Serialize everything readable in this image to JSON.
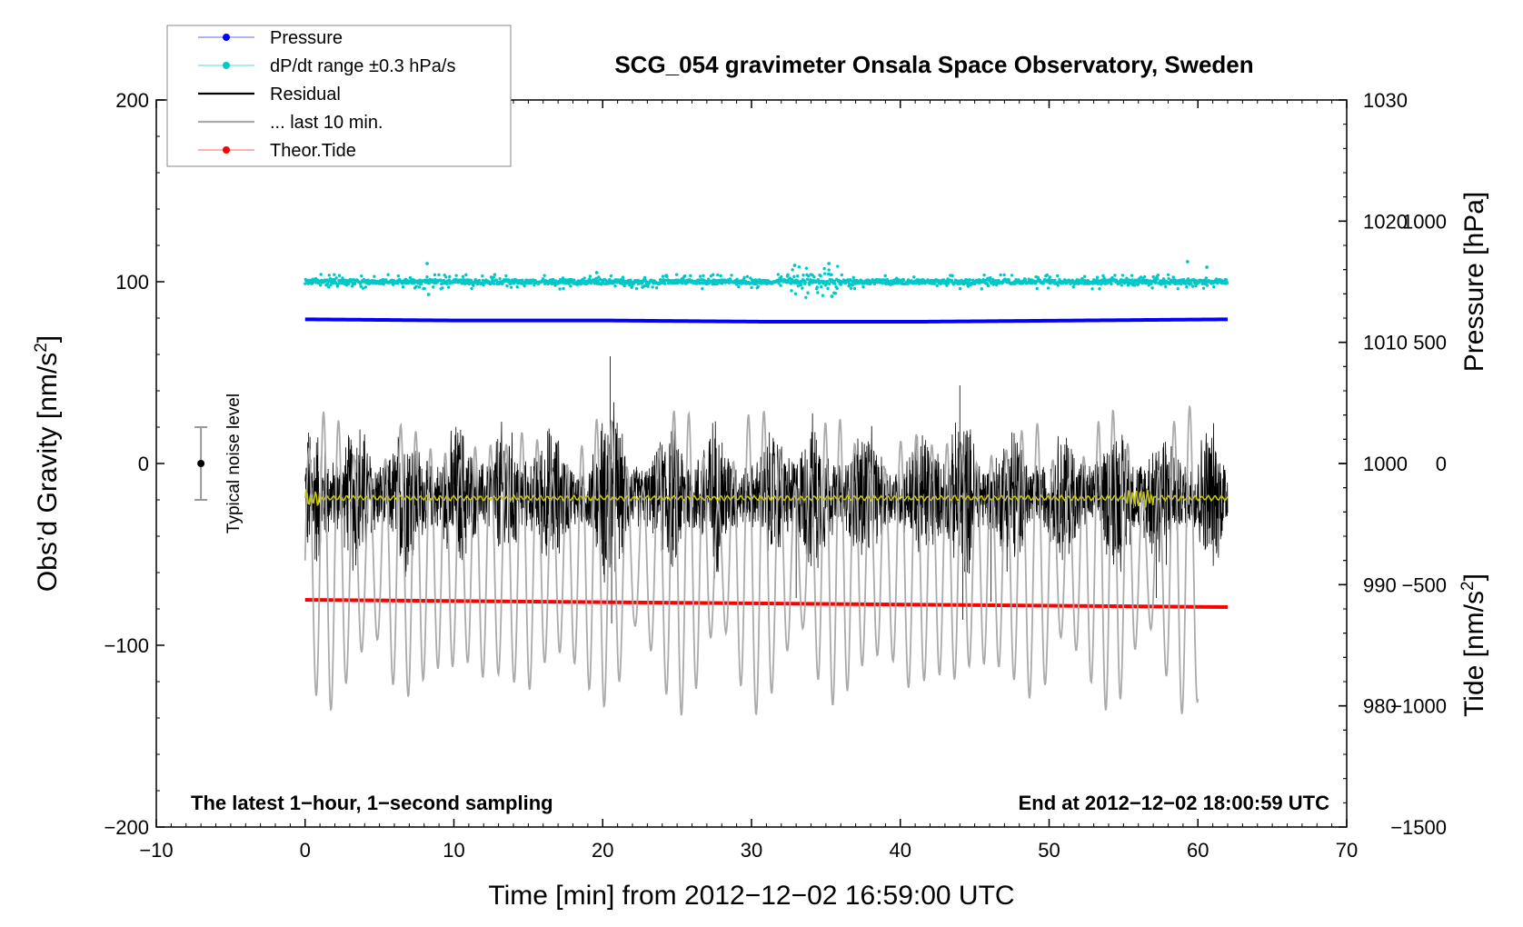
{
  "chart_data": {
    "type": "line",
    "title": "SCG_054 gravimeter Onsala Space Observatory, Sweden",
    "xlabel": "Time [min] from 2012−12−02 16:59:00 UTC",
    "ylabel_prefix": "Obs’d Gravity [nm/s",
    "ylabel_sup": "2",
    "ylabel_suffix": "]",
    "y2label": "Pressure [hPa]",
    "y3label_prefix": "Tide [nm/s",
    "y3label_sup": "2",
    "y3label_suffix": "]",
    "xlim": [
      -10,
      70
    ],
    "ylim": [
      -200,
      200
    ],
    "pressure_axis": {
      "range": [
        970,
        1030
      ],
      "ticks": [
        980,
        990,
        1000,
        1010,
        1020,
        1030
      ]
    },
    "tide_axis": {
      "range": [
        -1500,
        1500
      ],
      "ticks": [
        -1500,
        -1000,
        -500,
        0,
        500,
        1000
      ]
    },
    "x_ticks": [
      -10,
      0,
      10,
      20,
      30,
      40,
      50,
      60,
      70
    ],
    "x_tick_labels": [
      "−10",
      "0",
      "10",
      "20",
      "30",
      "40",
      "50",
      "60",
      "70"
    ],
    "y_ticks": [
      -200,
      -100,
      0,
      100,
      200
    ],
    "y_tick_labels": [
      "−200",
      "−100",
      "0",
      "100",
      "200"
    ],
    "pressure_tick_labels": [
      "980",
      "990",
      "1000",
      "1010",
      "1020",
      "1030"
    ],
    "tide_tick_labels": [
      "−1500",
      "−1000",
      "−500",
      "0",
      "500",
      "1000"
    ],
    "series": [
      {
        "name": "Pressure",
        "color": "#0000ff",
        "axis": "pressure",
        "x_range": [
          0,
          62
        ],
        "approx_values_hpa": [
          1011.9,
          1011.8,
          1011.8,
          1011.7,
          1011.7,
          1011.8,
          1011.9
        ]
      },
      {
        "name": "dP/dt range ±0.3 hPa/s",
        "color": "#00c8c8",
        "axis": "gravity",
        "x_range": [
          0,
          62
        ],
        "baseline": 100,
        "scatter": "about ±5 with outliers to ±10"
      },
      {
        "name": "Residual",
        "color": "#000000",
        "axis": "gravity",
        "x_range": [
          0,
          62
        ],
        "baseline": -18,
        "envelope": "about ±40, max 59, min −88"
      },
      {
        "name": "... last 10 min.",
        "color": "#aaaaaa",
        "axis": "tide",
        "x_range": [
          0,
          60
        ],
        "centre": -400,
        "amplitude": "about ±600"
      },
      {
        "name": "Theor.Tide",
        "color": "#ff0000",
        "axis": "gravity",
        "x_range": [
          0,
          62
        ],
        "values_start_end": [
          -75,
          -79
        ]
      }
    ],
    "smoothed_residual": {
      "color": "#c8c800",
      "baseline": -19
    },
    "noise_bar": {
      "label": "Typical noise level",
      "x": -7,
      "centre": 0,
      "half_range": 20
    },
    "annotations": {
      "bottom_left": "The latest 1−hour, 1−second sampling",
      "bottom_right": "End at 2012−12−02 18:00:59 UTC"
    },
    "legend_position": "top-left"
  },
  "legend": [
    {
      "label": "Pressure",
      "color": "#0000ff",
      "line_color": "#9999ff",
      "marker": true
    },
    {
      "label": "dP/dt range ±0.3 hPa/s",
      "color": "#00c8c8",
      "line_color": "#88e6e6",
      "marker": true
    },
    {
      "label": "Residual",
      "color": "#000000",
      "line_color": "#000000",
      "marker": false
    },
    {
      "label": "... last 10 min.",
      "color": "#aaaaaa",
      "line_color": "#aaaaaa",
      "marker": false
    },
    {
      "label": "Theor.Tide",
      "color": "#ff0000",
      "line_color": "#ff9999",
      "marker": true
    }
  ]
}
